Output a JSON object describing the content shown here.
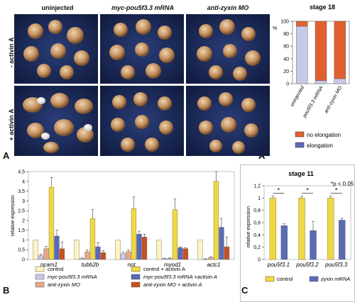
{
  "panel_labels": {
    "a": "A",
    "a_prime": "A’",
    "b": "B",
    "c": "C"
  },
  "panel_a": {
    "column_headers": [
      "uninjected",
      "myc-pou5f3.3 mRNA",
      "anti-zyxin MO"
    ],
    "row_labels": [
      "- activin A",
      "+ activin A"
    ],
    "colors": {
      "background": "#1a2a55",
      "explant": "#c79a6a"
    }
  },
  "chart_data": [
    {
      "id": "a_prime",
      "type": "bar",
      "stacked": true,
      "title": "stage 18",
      "ylabel": "%",
      "ylim": [
        0,
        100
      ],
      "yticks": [
        0,
        20,
        40,
        60,
        80,
        100
      ],
      "categories": [
        "uninjected",
        "pou5f3.3 mRNA",
        "anti-zyxin MO"
      ],
      "series": [
        {
          "name": "elongation",
          "color": "#c8c8e8",
          "values": [
            92,
            5,
            8
          ]
        },
        {
          "name": "no elongation",
          "color": "#e06030",
          "values": [
            8,
            95,
            92
          ]
        }
      ],
      "legend_order": [
        "no elongation",
        "elongation"
      ],
      "legend_colors": [
        "#e06030",
        "#5a6ab5"
      ]
    },
    {
      "id": "b",
      "type": "bar",
      "ylabel": "relative expression",
      "ylim": [
        0,
        4.5
      ],
      "yticks": [
        "0",
        "0,5",
        "1",
        "1,5",
        "2",
        "2,5",
        "3",
        "3,5",
        "4",
        "4,5"
      ],
      "categories": [
        "ncam1",
        "tubb2b",
        "not",
        "myod1",
        "actc1"
      ],
      "series": [
        {
          "name": "control",
          "color": "#fff4c0",
          "values": [
            1,
            1,
            1,
            1,
            1
          ],
          "err": [
            0,
            0,
            0,
            0,
            0
          ]
        },
        {
          "name": "myc-pou5f3.3 mRNA",
          "color": "#c8c8e8",
          "values": [
            0.2,
            0.05,
            0.3,
            0.05,
            0.02
          ],
          "err": [
            0.08,
            0.03,
            0.08,
            0.02,
            0.02
          ]
        },
        {
          "name": "anti-zyxin MO",
          "color": "#e8a888",
          "values": [
            0.55,
            0.4,
            0.4,
            0.05,
            0.1
          ],
          "err": [
            0.12,
            0.1,
            0.1,
            0.03,
            0.05
          ]
        },
        {
          "name": "control + activin A",
          "color": "#f0d840",
          "values": [
            3.7,
            2.1,
            2.6,
            2.55,
            4.0
          ],
          "err": [
            0.5,
            0.45,
            0.6,
            0.55,
            0.5
          ]
        },
        {
          "name": "myc-pou5f3.3 mRNA +activin A",
          "color": "#5a6ab5",
          "values": [
            1.2,
            0.65,
            1.3,
            0.6,
            1.65
          ],
          "err": [
            0.3,
            0.2,
            0.15,
            0.05,
            0.45
          ]
        },
        {
          "name": "anti-zyxin MO + activin A",
          "color": "#c85020",
          "values": [
            0.55,
            0.35,
            1.15,
            0.55,
            0.65
          ],
          "err": [
            0.35,
            0.1,
            0.15,
            0.05,
            0.5
          ]
        }
      ]
    },
    {
      "id": "c",
      "type": "bar",
      "title": "stage 11",
      "ylabel": "relative expression",
      "ylim": [
        0,
        1.2
      ],
      "yticks": [
        "0",
        "0,2",
        "0,4",
        "0,6",
        "0,8",
        "1",
        "1,2"
      ],
      "categories": [
        "pou5f3.1",
        "pou5f3.2",
        "pou5f3.3"
      ],
      "series": [
        {
          "name": "control",
          "color": "#f0d840",
          "values": [
            1,
            1,
            1
          ],
          "err": [
            0.03,
            0.03,
            0.03
          ]
        },
        {
          "name": "zyxin mRNA",
          "color": "#5a6ab5",
          "values": [
            0.55,
            0.47,
            0.64
          ],
          "err": [
            0.03,
            0.15,
            0.03
          ]
        }
      ],
      "significance": {
        "marker": "*",
        "note": "*p < 0.05"
      }
    }
  ]
}
